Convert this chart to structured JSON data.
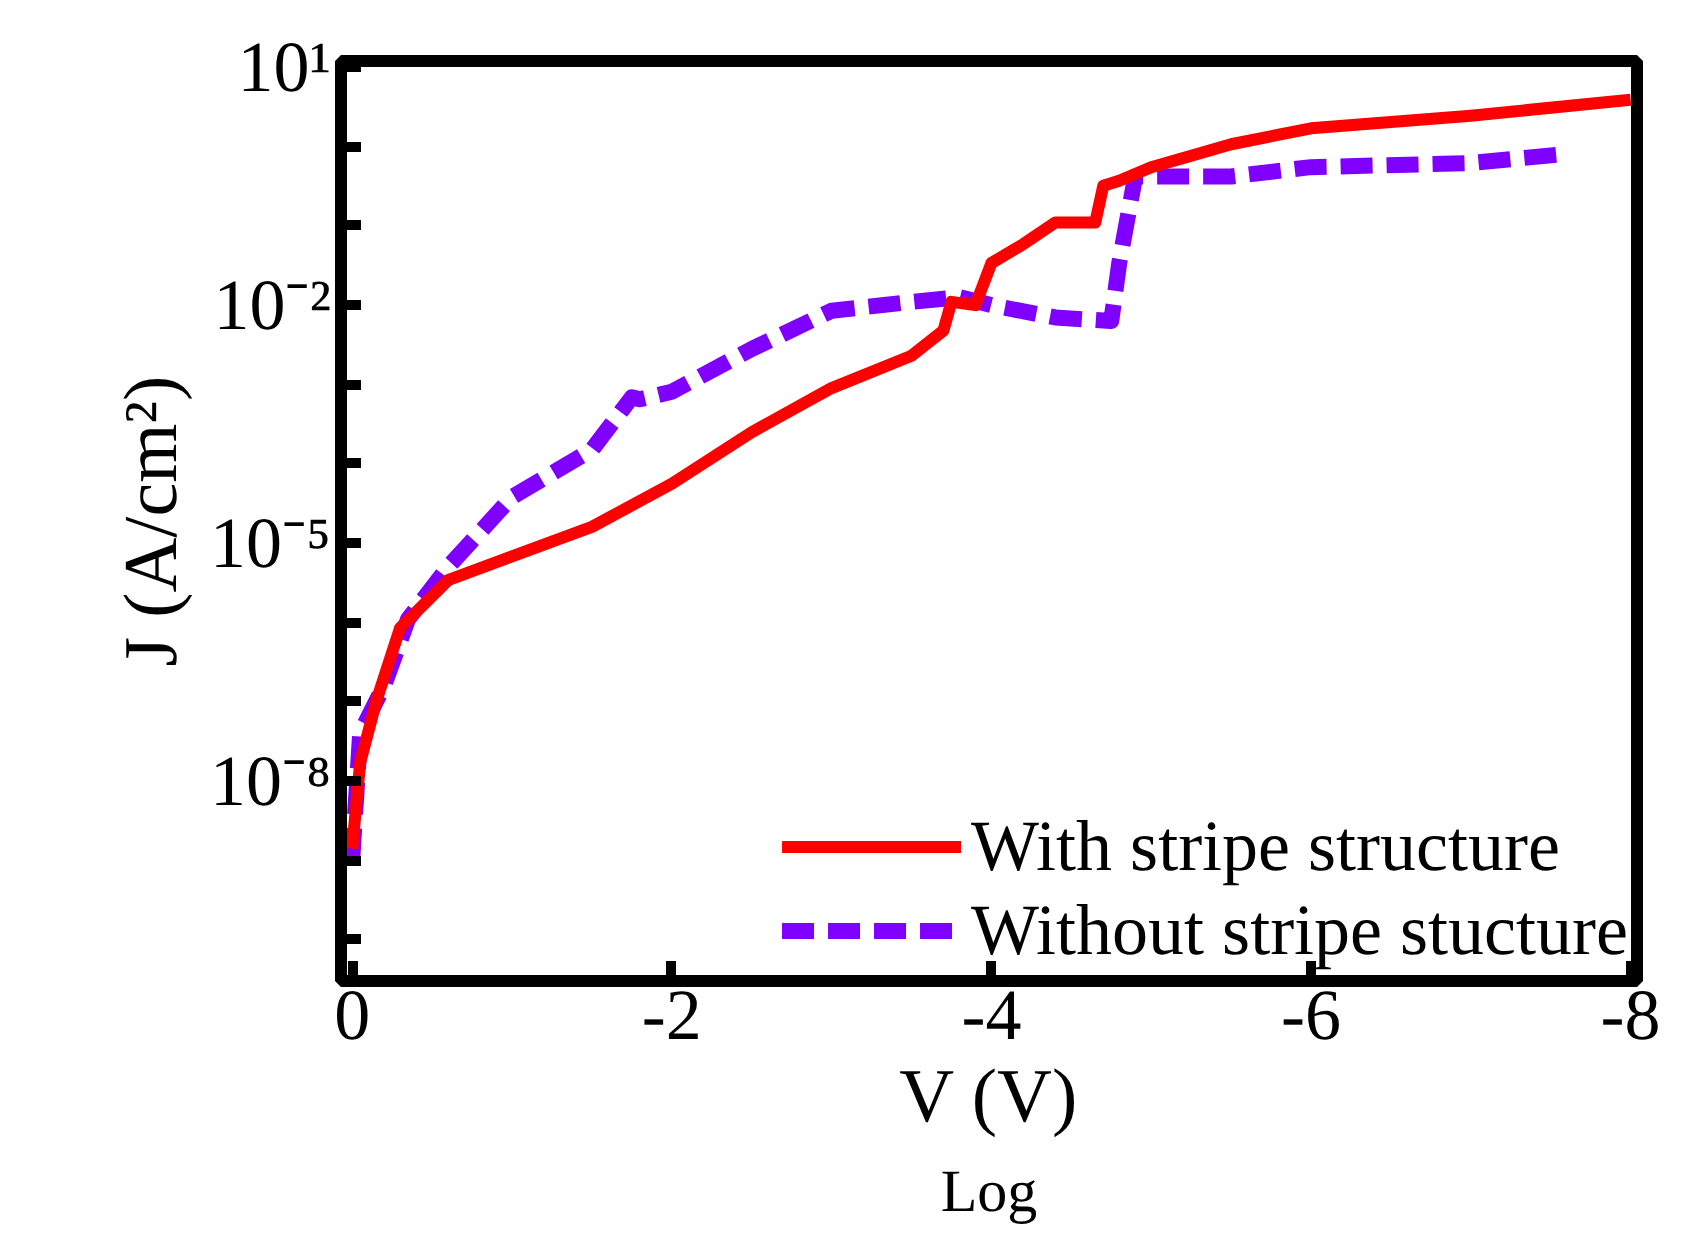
{
  "chart_data": {
    "type": "line",
    "xlabel": "V (V)",
    "ylabel": "J (A/cm²)",
    "annotations": [
      "Log"
    ],
    "log": "y",
    "grid": false,
    "legend": "bottom right",
    "xlim": [
      0.07,
      -8.04
    ],
    "ylim": [
      3e-11,
      12
    ],
    "xticks": [
      0,
      -2,
      -4,
      -6,
      -8
    ],
    "yticks": [
      {
        "value": 1e-10,
        "label": null
      },
      {
        "value": 1e-09,
        "label": null
      },
      {
        "value": 1e-08,
        "label": "10⁻⁸"
      },
      {
        "value": 1e-07,
        "label": null
      },
      {
        "value": 1e-06,
        "label": null
      },
      {
        "value": 1e-05,
        "label": "10⁻⁵"
      },
      {
        "value": 0.0001,
        "label": null
      },
      {
        "value": 0.001,
        "label": null
      },
      {
        "value": 0.01,
        "label": "10⁻²"
      },
      {
        "value": 0.1,
        "label": null
      },
      {
        "value": 1,
        "label": null
      },
      {
        "value": 10,
        "label": "10¹"
      }
    ],
    "series": [
      {
        "name": "With stripe structure",
        "color": "#ff0000",
        "line_style": "solid",
        "x": [
          0,
          -0.05,
          -0.15,
          -0.3,
          -0.6,
          -1.0,
          -1.5,
          -2.0,
          -2.5,
          -3.0,
          -3.5,
          -3.7,
          -3.75,
          -3.9,
          -4.0,
          -4.2,
          -4.4,
          -4.65,
          -4.7,
          -4.8,
          -5.0,
          -5.5,
          -6.0,
          -7.0,
          -8.0
        ],
        "values": [
          1.4e-09,
          1.7e-08,
          1e-07,
          8.5e-07,
          3.4e-06,
          6.8e-06,
          1.6e-05,
          5.6e-05,
          0.00025,
          0.0009,
          0.0023,
          0.0048,
          0.011,
          0.01,
          0.034,
          0.059,
          0.11,
          0.11,
          0.32,
          0.37,
          0.55,
          1.07,
          1.7,
          2.45,
          3.9
        ]
      },
      {
        "name": "Without stripe stucture",
        "color": "#8000ff",
        "line_style": "dashed",
        "x": [
          0,
          -0.05,
          -0.2,
          -0.35,
          -0.6,
          -1.0,
          -1.5,
          -1.75,
          -1.8,
          -2.0,
          -2.5,
          -3.0,
          -3.5,
          -3.8,
          -4.0,
          -4.4,
          -4.75,
          -4.8,
          -4.9,
          -5.5,
          -6.0,
          -7.0,
          -7.6
        ],
        "values": [
          1e-09,
          4e-08,
          1.6e-07,
          1.1e-06,
          5e-06,
          3.8e-05,
          0.00015,
          0.00069,
          0.00065,
          0.00081,
          0.0028,
          0.0085,
          0.011,
          0.0126,
          0.01,
          0.007,
          0.0063,
          0.034,
          0.42,
          0.42,
          0.55,
          0.62,
          0.81
        ]
      }
    ]
  }
}
